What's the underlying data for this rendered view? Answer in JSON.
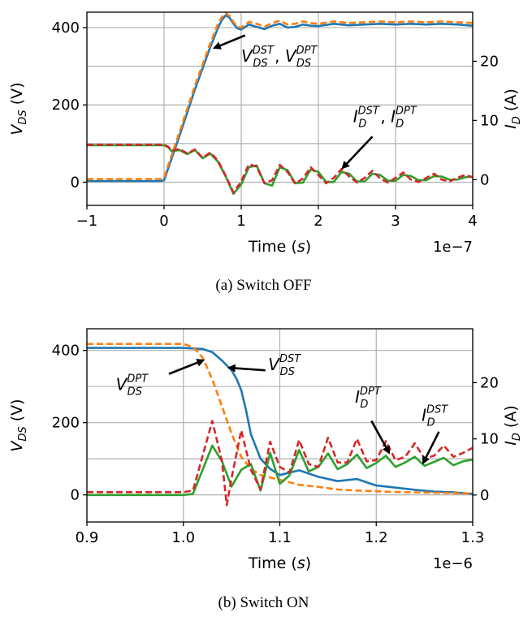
{
  "chart_data": [
    {
      "type": "line",
      "caption": "(a) Switch OFF",
      "xlabel": {
        "main": "Time (",
        "var": "s",
        "end": ")"
      },
      "ylabel_left": {
        "main": "V",
        "sub": "DS",
        "end": " (V)"
      },
      "ylabel_right": {
        "main": "I",
        "sub": "D",
        "end": " (A)"
      },
      "x_offset_text": "1e−7",
      "xlim": [
        -1.0,
        4.0
      ],
      "ylim_left": [
        -60,
        440
      ],
      "ylim_right": [
        -4.35,
        28.3
      ],
      "x_ticks": [
        -1,
        0,
        1,
        2,
        3,
        4
      ],
      "x_tick_labels": [
        "−1",
        "0",
        "1",
        "2",
        "3",
        "4"
      ],
      "y_left_ticks": [
        0,
        200,
        400
      ],
      "y_left_tick_labels": [
        "0",
        "200",
        "400"
      ],
      "y_right_ticks": [
        0,
        10,
        20
      ],
      "y_right_tick_labels": [
        "0",
        "10",
        "20"
      ],
      "grid_y_left": [
        0,
        100,
        200,
        300,
        400
      ],
      "series": [
        {
          "key": "vds_dst",
          "axis": "left",
          "color": "#1f77b4",
          "style": "solid",
          "x": [
            -1.0,
            -0.5,
            -0.05,
            0.0,
            0.2,
            0.4,
            0.6,
            0.7,
            0.75,
            0.8,
            0.85,
            0.9,
            0.95,
            1.0,
            1.1,
            1.2,
            1.3,
            1.4,
            1.5,
            1.6,
            1.7,
            1.8,
            1.9,
            2.0,
            2.2,
            2.4,
            2.6,
            2.8,
            3.0,
            3.2,
            3.4,
            3.6,
            3.8,
            4.0
          ],
          "y": [
            3,
            3,
            3,
            5,
            120,
            240,
            350,
            400,
            420,
            432,
            425,
            410,
            398,
            395,
            408,
            402,
            396,
            405,
            410,
            400,
            402,
            408,
            405,
            404,
            410,
            406,
            408,
            410,
            408,
            410,
            408,
            410,
            408,
            405
          ]
        },
        {
          "key": "vds_dpt",
          "axis": "left",
          "color": "#ff7f0e",
          "style": "dashed",
          "x": [
            -1.0,
            -0.5,
            -0.05,
            0.0,
            0.2,
            0.4,
            0.6,
            0.7,
            0.75,
            0.8,
            0.85,
            0.9,
            0.95,
            1.0,
            1.1,
            1.2,
            1.3,
            1.4,
            1.5,
            1.6,
            1.7,
            1.8,
            1.9,
            2.0,
            2.2,
            2.4,
            2.6,
            2.8,
            3.0,
            3.2,
            3.4,
            3.6,
            3.8,
            4.0
          ],
          "y": [
            8,
            8,
            8,
            12,
            130,
            250,
            360,
            410,
            428,
            438,
            430,
            415,
            402,
            400,
            415,
            410,
            402,
            412,
            418,
            408,
            410,
            416,
            412,
            410,
            416,
            412,
            414,
            416,
            414,
            416,
            414,
            416,
            414,
            412
          ]
        },
        {
          "key": "id_dst",
          "axis": "right",
          "color": "#2ca02c",
          "style": "solid",
          "x": [
            -1.0,
            -0.5,
            0.0,
            0.05,
            0.1,
            0.2,
            0.3,
            0.4,
            0.5,
            0.6,
            0.7,
            0.8,
            0.9,
            1.0,
            1.1,
            1.2,
            1.3,
            1.4,
            1.5,
            1.6,
            1.7,
            1.8,
            1.9,
            2.0,
            2.1,
            2.2,
            2.3,
            2.4,
            2.5,
            2.6,
            2.7,
            2.8,
            2.9,
            3.0,
            3.1,
            3.2,
            3.3,
            3.4,
            3.5,
            3.6,
            3.7,
            3.8,
            3.9,
            4.0
          ],
          "y": [
            5.8,
            5.8,
            5.8,
            5.5,
            4.8,
            5.0,
            4.3,
            5.0,
            3.6,
            4.4,
            3.0,
            0.5,
            -2.4,
            -0.8,
            2.1,
            2.4,
            -0.6,
            -1.0,
            2.1,
            1.6,
            -0.6,
            -0.5,
            1.7,
            1.3,
            -0.4,
            -0.4,
            1.3,
            1.0,
            -0.3,
            -0.3,
            1.0,
            0.8,
            -0.2,
            -0.2,
            0.8,
            0.6,
            -0.1,
            -0.1,
            0.6,
            0.5,
            0.0,
            0.0,
            0.4,
            0.5
          ]
        },
        {
          "key": "id_dpt",
          "axis": "right",
          "color": "#d62728",
          "style": "dashed",
          "x": [
            -1.0,
            -0.5,
            0.0,
            0.05,
            0.1,
            0.2,
            0.3,
            0.4,
            0.5,
            0.6,
            0.7,
            0.8,
            0.9,
            1.0,
            1.1,
            1.2,
            1.3,
            1.4,
            1.5,
            1.6,
            1.7,
            1.8,
            1.9,
            2.0,
            2.1,
            2.2,
            2.3,
            2.4,
            2.5,
            2.6,
            2.7,
            2.8,
            2.9,
            3.0,
            3.1,
            3.2,
            3.3,
            3.4,
            3.5,
            3.6,
            3.7,
            3.8,
            3.9,
            4.0
          ],
          "y": [
            5.9,
            5.9,
            5.9,
            5.6,
            4.9,
            5.2,
            4.4,
            5.1,
            3.7,
            4.6,
            3.2,
            0.6,
            -2.2,
            -0.3,
            2.6,
            2.2,
            -0.6,
            -0.1,
            2.5,
            1.3,
            -0.7,
            0.2,
            2.1,
            0.8,
            -0.6,
            0.3,
            1.8,
            0.5,
            -0.5,
            0.3,
            1.5,
            0.2,
            -0.5,
            0.3,
            1.2,
            0.0,
            -0.4,
            0.3,
            1.0,
            0.0,
            -0.3,
            0.3,
            0.8,
            0.4
          ]
        }
      ],
      "annotations": [
        {
          "key": "v",
          "base1": "V",
          "sub1": "DS",
          "sup1": "DST",
          "sep": ",  ",
          "base2": "V",
          "sub2": "DS",
          "sup2": "DPT",
          "arrow_from": [
            1.05,
            380
          ],
          "arrow_to": [
            0.66,
            348
          ],
          "text_at": [
            1.0,
            312
          ]
        },
        {
          "key": "i",
          "base1": "I",
          "sub1": "D",
          "sup1": "DST",
          "sep": ", ",
          "base2": "I",
          "sub2": "D",
          "sup2": "DPT",
          "arrow_from": [
            2.7,
            118
          ],
          "arrow_to": [
            2.32,
            38
          ],
          "text_at": [
            2.45,
            155
          ]
        }
      ]
    },
    {
      "type": "line",
      "caption": "(b) Switch ON",
      "xlabel": {
        "main": "Time (",
        "var": "s",
        "end": ")"
      },
      "ylabel_left": {
        "main": "V",
        "sub": "DS",
        "end": " (V)"
      },
      "ylabel_right": {
        "main": "I",
        "sub": "D",
        "end": " (A)"
      },
      "x_offset_text": "1e−6",
      "xlim": [
        0.9,
        1.3
      ],
      "ylim_left": [
        -75,
        460
      ],
      "ylim_right": [
        -4.8,
        29.6
      ],
      "x_ticks": [
        0.9,
        1.0,
        1.1,
        1.2,
        1.3
      ],
      "x_tick_labels": [
        "0.9",
        "1.0",
        "1.1",
        "1.2",
        "1.3"
      ],
      "y_left_ticks": [
        0,
        200,
        400
      ],
      "y_left_tick_labels": [
        "0",
        "200",
        "400"
      ],
      "y_right_ticks": [
        0,
        10,
        20
      ],
      "y_right_tick_labels": [
        "0",
        "10",
        "20"
      ],
      "grid_y_left": [
        0,
        100,
        200,
        300,
        400
      ],
      "series": [
        {
          "key": "vds_dst",
          "axis": "left",
          "color": "#1f77b4",
          "style": "solid",
          "x": [
            0.9,
            0.95,
            1.0,
            1.02,
            1.03,
            1.04,
            1.05,
            1.055,
            1.06,
            1.065,
            1.07,
            1.08,
            1.09,
            1.1,
            1.12,
            1.14,
            1.16,
            1.18,
            1.2,
            1.22,
            1.24,
            1.26,
            1.28,
            1.3
          ],
          "y": [
            407,
            407,
            407,
            404,
            395,
            372,
            345,
            322,
            290,
            235,
            168,
            100,
            72,
            55,
            68,
            50,
            38,
            44,
            26,
            20,
            14,
            9,
            7,
            3
          ]
        },
        {
          "key": "vds_dpt",
          "axis": "left",
          "color": "#ff7f0e",
          "style": "dashed",
          "x": [
            0.9,
            0.95,
            1.0,
            1.01,
            1.02,
            1.03,
            1.04,
            1.05,
            1.06,
            1.07,
            1.08,
            1.09,
            1.1,
            1.12,
            1.14,
            1.16,
            1.18,
            1.2,
            1.22,
            1.24,
            1.26,
            1.28,
            1.3
          ],
          "y": [
            418,
            418,
            418,
            410,
            380,
            320,
            245,
            170,
            105,
            72,
            55,
            48,
            42,
            28,
            22,
            15,
            12,
            10,
            8,
            7,
            6,
            5,
            4
          ]
        },
        {
          "key": "id_dst",
          "axis": "right",
          "color": "#2ca02c",
          "style": "solid",
          "x": [
            0.9,
            1.0,
            1.01,
            1.02,
            1.03,
            1.04,
            1.05,
            1.06,
            1.07,
            1.08,
            1.09,
            1.1,
            1.11,
            1.12,
            1.13,
            1.14,
            1.15,
            1.16,
            1.17,
            1.18,
            1.19,
            1.2,
            1.21,
            1.22,
            1.23,
            1.24,
            1.25,
            1.26,
            1.27,
            1.28,
            1.29,
            1.3
          ],
          "y": [
            0,
            0,
            0.2,
            4.5,
            8.8,
            6.0,
            1.5,
            4.5,
            5.5,
            0.8,
            7.5,
            2.0,
            3.5,
            8.0,
            4.2,
            5.0,
            7.4,
            4.6,
            5.5,
            7.2,
            4.8,
            5.7,
            7.0,
            5.0,
            5.8,
            6.8,
            5.2,
            5.9,
            6.6,
            5.3,
            6.0,
            6.3
          ]
        },
        {
          "key": "id_dpt",
          "axis": "right",
          "color": "#d62728",
          "style": "dashed",
          "x": [
            0.9,
            1.0,
            1.01,
            1.02,
            1.03,
            1.04,
            1.045,
            1.05,
            1.06,
            1.07,
            1.08,
            1.09,
            1.1,
            1.11,
            1.12,
            1.13,
            1.14,
            1.15,
            1.16,
            1.17,
            1.18,
            1.19,
            1.2,
            1.21,
            1.22,
            1.23,
            1.24,
            1.25,
            1.26,
            1.27,
            1.28,
            1.29,
            1.3
          ],
          "y": [
            0.5,
            0.5,
            0.8,
            7.0,
            13.2,
            6.0,
            -1.8,
            3.0,
            11.5,
            4.5,
            1.0,
            9.5,
            5.0,
            4.0,
            9.8,
            5.5,
            5.0,
            10.2,
            5.8,
            5.8,
            10.0,
            6.0,
            6.2,
            9.6,
            6.2,
            6.8,
            9.2,
            6.5,
            7.0,
            8.8,
            6.8,
            7.5,
            8.4
          ]
        }
      ],
      "annotations": [
        {
          "key": "v_dst",
          "base1": "V",
          "sub1": "DS",
          "sup1": "DST",
          "arrow_from": [
            1.085,
            345
          ],
          "arrow_to": [
            1.048,
            352
          ],
          "text_at": [
            1.088,
            345
          ]
        },
        {
          "key": "v_dpt",
          "base1": "V",
          "sub1": "DS",
          "sup1": "DPT",
          "arrow_from": [
            0.985,
            335
          ],
          "arrow_to": [
            1.02,
            372
          ],
          "text_at": [
            0.93,
            290
          ]
        },
        {
          "key": "i_dpt",
          "base1": "I",
          "sub1": "D",
          "sup1": "DPT",
          "arrow_from": [
            1.195,
            205
          ],
          "arrow_to": [
            1.213,
            118
          ],
          "text_at": [
            1.178,
            255
          ]
        },
        {
          "key": "i_dst",
          "base1": "I",
          "sub1": "D",
          "sup1": "DST",
          "arrow_from": [
            1.265,
            175
          ],
          "arrow_to": [
            1.249,
            90
          ],
          "text_at": [
            1.247,
            205
          ]
        }
      ]
    }
  ]
}
